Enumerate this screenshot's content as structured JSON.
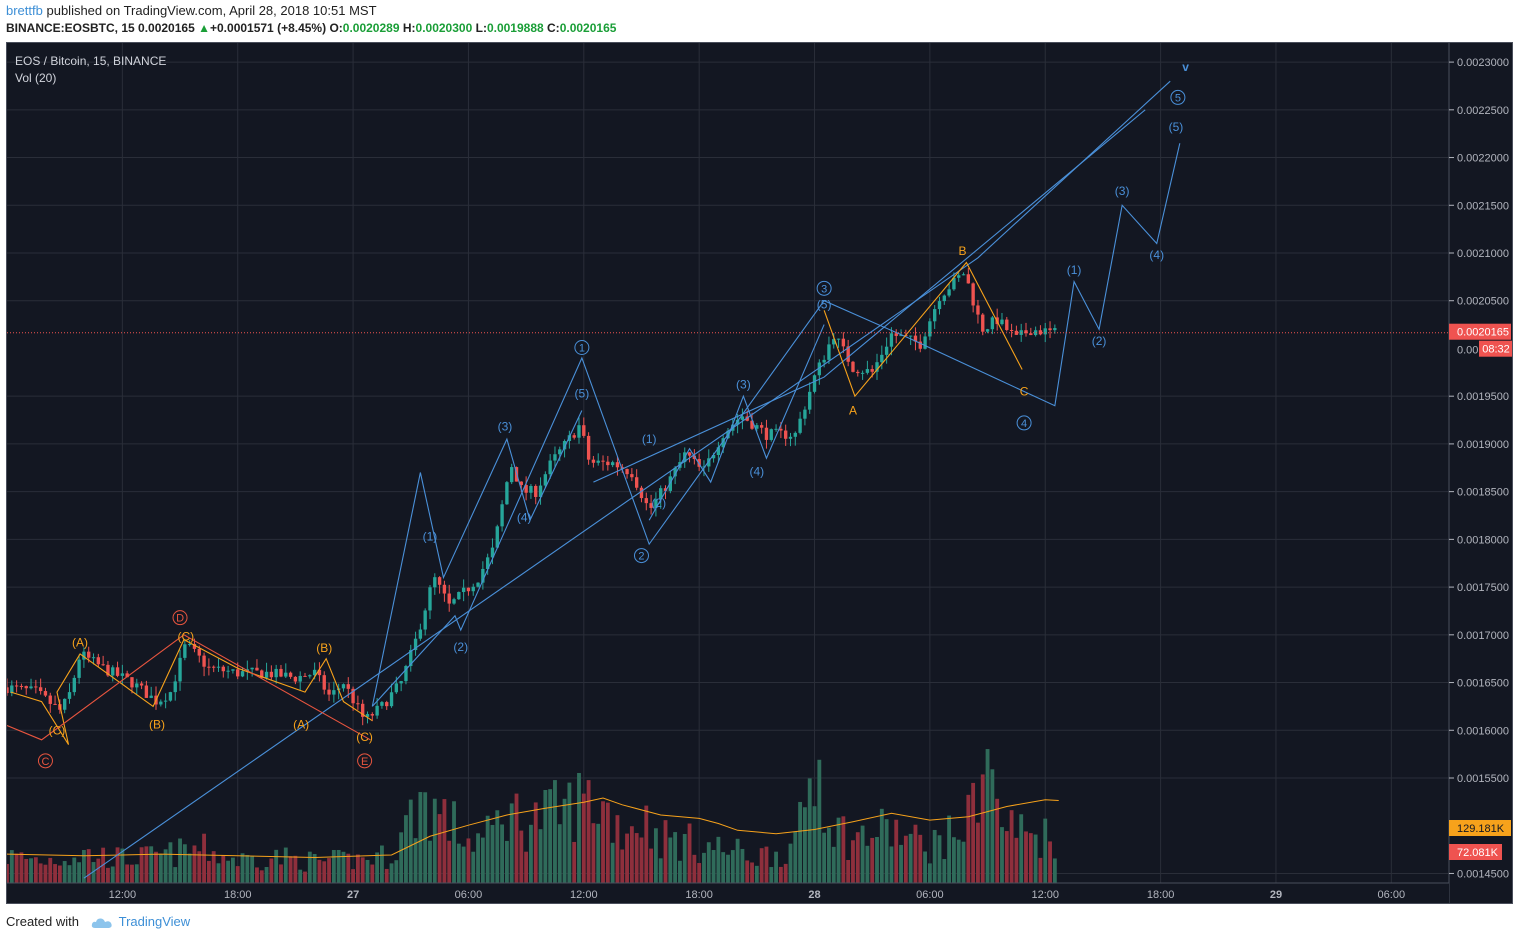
{
  "header": {
    "user": "brettfb",
    "published": "published on TradingView.com, April 28, 2018 10:51 MST",
    "symbol": "BINANCE:EOSBTC, 15",
    "price": "0.0020165",
    "arrow": "▲",
    "change": "+0.0001571 (+8.45%)",
    "open_label": "O:",
    "open": "0.0020289",
    "high_label": "H:",
    "high": "0.0020300",
    "low_label": "L:",
    "low": "0.0019888",
    "close_label": "C:",
    "close": "0.0020165"
  },
  "footer": {
    "created_with": "Created with",
    "brand": "TradingView"
  },
  "colors": {
    "background": "#131722",
    "grid": "#2a2e39",
    "up": "#26a69a",
    "down": "#ef5350",
    "wave_blue": "#4a90d9",
    "wave_orange": "#f7a21b",
    "wave_red": "#e8553f",
    "vol_up": "#2f6b5a",
    "vol_down": "#8e2f3c",
    "vol_ma": "#f7a21b",
    "axis_text": "#b2b5be"
  },
  "chart_data": {
    "type": "candlestick",
    "title": "EOS / Bitcoin, 15, BINANCE",
    "subtitle": "Vol (20)",
    "y_ticks": [
      "0.0023000",
      "0.0022500",
      "0.0022000",
      "0.0021500",
      "0.0021000",
      "0.0020500",
      "0.0019500",
      "0.0019000",
      "0.0018500",
      "0.0018000",
      "0.0017500",
      "0.0017000",
      "0.0016500",
      "0.0016000",
      "0.0015500",
      "0.0014500"
    ],
    "y_tick_values": [
      0.0023,
      0.00225,
      0.0022,
      0.00215,
      0.0021,
      0.00205,
      0.00195,
      0.0019,
      0.00185,
      0.0018,
      0.00175,
      0.0017,
      0.00165,
      0.0016,
      0.00155,
      0.00145
    ],
    "ylim": [
      0.00144,
      0.00232
    ],
    "x_ticks": [
      "12:00",
      "18:00",
      "27",
      "06:00",
      "12:00",
      "18:00",
      "28",
      "06:00",
      "12:00",
      "18:00",
      "29",
      "06:00"
    ],
    "x_tick_hours": [
      12,
      18,
      24,
      30,
      36,
      42,
      48,
      54,
      60,
      66,
      72,
      78
    ],
    "xlim_hours": [
      6,
      81
    ],
    "last_price": {
      "value": 0.0020165,
      "label": "0.0020165",
      "countdown": "08:32",
      "partial_label": "0.00"
    },
    "volume_labels": {
      "ma": "129.181K",
      "volume": "72.081K"
    },
    "price_path": [
      [
        6.0,
        0.001645
      ],
      [
        7.5,
        0.00164
      ],
      [
        8.8,
        0.00162
      ],
      [
        9.3,
        0.00164
      ],
      [
        9.8,
        0.00168
      ],
      [
        11,
        0.001665
      ],
      [
        12.5,
        0.00165
      ],
      [
        13.8,
        0.00163
      ],
      [
        14.5,
        0.00164
      ],
      [
        15.3,
        0.00169
      ],
      [
        16.5,
        0.001665
      ],
      [
        18,
        0.00166
      ],
      [
        19.5,
        0.00166
      ],
      [
        21,
        0.001655
      ],
      [
        22,
        0.00166
      ],
      [
        22.8,
        0.001635
      ],
      [
        23.5,
        0.00165
      ],
      [
        24.6,
        0.00161
      ],
      [
        25.5,
        0.001625
      ],
      [
        26.5,
        0.00165
      ],
      [
        27.2,
        0.00169
      ],
      [
        28.2,
        0.00176
      ],
      [
        29,
        0.00173
      ],
      [
        29.8,
        0.001745
      ],
      [
        30.5,
        0.00176
      ],
      [
        31.3,
        0.00179
      ],
      [
        32.2,
        0.00188
      ],
      [
        32.8,
        0.00185
      ],
      [
        33.5,
        0.00185
      ],
      [
        34.3,
        0.00188
      ],
      [
        35.8,
        0.00192
      ],
      [
        36.3,
        0.00188
      ],
      [
        37.5,
        0.00188
      ],
      [
        38.5,
        0.00187
      ],
      [
        39.4,
        0.00183
      ],
      [
        40.4,
        0.00186
      ],
      [
        41.3,
        0.00189
      ],
      [
        42.2,
        0.00187
      ],
      [
        43.2,
        0.00191
      ],
      [
        44.2,
        0.00193
      ],
      [
        45.5,
        0.00191
      ],
      [
        47,
        0.00191
      ],
      [
        48,
        0.00197
      ],
      [
        49,
        0.002015
      ],
      [
        50,
        0.00198
      ],
      [
        51,
        0.001975
      ],
      [
        52,
        0.002015
      ],
      [
        53.5,
        0.002005
      ],
      [
        54.5,
        0.002055
      ],
      [
        55.8,
        0.00208
      ],
      [
        56.7,
        0.00202
      ],
      [
        57.5,
        0.00203
      ],
      [
        58.5,
        0.00201
      ],
      [
        59.2,
        0.00202
      ],
      [
        60.5,
        0.0020165
      ]
    ],
    "volume_shape_k": [
      [
        6,
        35
      ],
      [
        8,
        30
      ],
      [
        10,
        38
      ],
      [
        12,
        32
      ],
      [
        14,
        35
      ],
      [
        16,
        45
      ],
      [
        18,
        30
      ],
      [
        20,
        34
      ],
      [
        22,
        28
      ],
      [
        24,
        30
      ],
      [
        26,
        36
      ],
      [
        27.5,
        110
      ],
      [
        29,
        80
      ],
      [
        30,
        55
      ],
      [
        31,
        60
      ],
      [
        32,
        95
      ],
      [
        33,
        80
      ],
      [
        34,
        88
      ],
      [
        35,
        95
      ],
      [
        36,
        110
      ],
      [
        37,
        100
      ],
      [
        38,
        70
      ],
      [
        39,
        85
      ],
      [
        40,
        60
      ],
      [
        41,
        55
      ],
      [
        42,
        50
      ],
      [
        43,
        45
      ],
      [
        44,
        40
      ],
      [
        45,
        35
      ],
      [
        46,
        40
      ],
      [
        47,
        45
      ],
      [
        47.6,
        120
      ],
      [
        48.2,
        160
      ],
      [
        49,
        75
      ],
      [
        50,
        55
      ],
      [
        51,
        65
      ],
      [
        52,
        70
      ],
      [
        53,
        55
      ],
      [
        54,
        50
      ],
      [
        55,
        60
      ],
      [
        56,
        80
      ],
      [
        56.9,
        190
      ],
      [
        57.5,
        90
      ],
      [
        58,
        75
      ],
      [
        59,
        65
      ],
      [
        60,
        62
      ],
      [
        60.7,
        60
      ]
    ],
    "volume_ma_k": [
      [
        6,
        34
      ],
      [
        10,
        32
      ],
      [
        14,
        34
      ],
      [
        18,
        32
      ],
      [
        22,
        30
      ],
      [
        26,
        33
      ],
      [
        28,
        55
      ],
      [
        30,
        68
      ],
      [
        32,
        80
      ],
      [
        34,
        88
      ],
      [
        36,
        95
      ],
      [
        37,
        100
      ],
      [
        38,
        92
      ],
      [
        40,
        80
      ],
      [
        42,
        76
      ],
      [
        43,
        70
      ],
      [
        44,
        62
      ],
      [
        46,
        58
      ],
      [
        48,
        63
      ],
      [
        50,
        72
      ],
      [
        52,
        82
      ],
      [
        54,
        74
      ],
      [
        56,
        78
      ],
      [
        58,
        90
      ],
      [
        60,
        98
      ],
      [
        60.7,
        97
      ]
    ],
    "lines": [
      {
        "color": "wave_blue",
        "points": [
          [
            10,
            0.001445
          ],
          [
            56.5,
            0.002095
          ],
          [
            66.5,
            0.00228
          ]
        ]
      },
      {
        "color": "wave_blue",
        "points": [
          [
            36.5,
            0.00186
          ],
          [
            48.5,
            0.00197
          ],
          [
            65.2,
            0.00225
          ]
        ]
      },
      {
        "color": "wave_blue",
        "points": [
          [
            25,
            0.001625
          ],
          [
            27.5,
            0.00187
          ],
          [
            28.7,
            0.00176
          ],
          [
            32,
            0.001905
          ],
          [
            33.2,
            0.00182
          ],
          [
            35.9,
            0.001935
          ]
        ]
      },
      {
        "color": "wave_blue",
        "points": [
          [
            25,
            0.001625
          ],
          [
            29.3,
            0.00172
          ],
          [
            29.6,
            0.001705
          ],
          [
            35.9,
            0.00199
          ],
          [
            39.4,
            0.001795
          ],
          [
            48.5,
            0.00205
          ],
          [
            53,
            0.00201
          ],
          [
            60.5,
            0.00194
          ],
          [
            61.5,
            0.00207
          ],
          [
            62.8,
            0.00202
          ],
          [
            64,
            0.00215
          ],
          [
            65.8,
            0.00211
          ],
          [
            67,
            0.002215
          ]
        ]
      },
      {
        "color": "wave_blue",
        "points": [
          [
            39.4,
            0.00182
          ],
          [
            41.5,
            0.001895
          ],
          [
            42.6,
            0.00186
          ],
          [
            44.3,
            0.00195
          ],
          [
            45.5,
            0.001885
          ],
          [
            48.5,
            0.002025
          ]
        ]
      },
      {
        "color": "wave_orange",
        "points": [
          [
            6.2,
            0.00164
          ],
          [
            7.8,
            0.00163
          ],
          [
            9.2,
            0.001585
          ],
          [
            8.6,
            0.00164
          ],
          [
            9.8,
            0.00168
          ],
          [
            13.6,
            0.001625
          ],
          [
            15.2,
            0.001695
          ],
          [
            18,
            0.001665
          ],
          [
            21.5,
            0.00164
          ],
          [
            22.6,
            0.001675
          ],
          [
            23.5,
            0.00163
          ],
          [
            25,
            0.00161
          ]
        ]
      },
      {
        "color": "wave_orange",
        "points": [
          [
            48.5,
            0.00204
          ],
          [
            50.1,
            0.00195
          ],
          [
            55.9,
            0.00209
          ],
          [
            58.8,
            0.001978
          ]
        ]
      },
      {
        "color": "wave_red",
        "points": [
          [
            6,
            0.001605
          ],
          [
            7.8,
            0.00159
          ],
          [
            15.2,
            0.0017
          ],
          [
            24.9,
            0.00159
          ]
        ]
      }
    ],
    "annotations": [
      {
        "text": "(A)",
        "x": 9.8,
        "y": 0.001692,
        "color": "wave_orange"
      },
      {
        "text": "(C)",
        "x": 8.6,
        "y": 0.0016,
        "color": "wave_orange"
      },
      {
        "text": "C",
        "x": 8.0,
        "y": 0.001568,
        "color": "wave_red",
        "circle": true
      },
      {
        "text": "(B)",
        "x": 13.8,
        "y": 0.001606,
        "color": "wave_orange"
      },
      {
        "text": "D",
        "x": 15.0,
        "y": 0.001718,
        "color": "wave_red",
        "circle": true
      },
      {
        "text": "(C)",
        "x": 15.3,
        "y": 0.001698,
        "color": "wave_orange"
      },
      {
        "text": "(B)",
        "x": 22.5,
        "y": 0.001686,
        "color": "wave_orange"
      },
      {
        "text": "(A)",
        "x": 21.3,
        "y": 0.001606,
        "color": "wave_orange"
      },
      {
        "text": "(C)",
        "x": 24.6,
        "y": 0.001593,
        "color": "wave_orange"
      },
      {
        "text": "E",
        "x": 24.6,
        "y": 0.001568,
        "color": "wave_red",
        "circle": true
      },
      {
        "text": "(1)",
        "x": 28.0,
        "y": 0.001803,
        "color": "wave_blue"
      },
      {
        "text": "(2)",
        "x": 29.6,
        "y": 0.001687,
        "color": "wave_blue"
      },
      {
        "text": "(3)",
        "x": 31.9,
        "y": 0.001918,
        "color": "wave_blue"
      },
      {
        "text": "(4)",
        "x": 32.9,
        "y": 0.001823,
        "color": "wave_blue"
      },
      {
        "text": "(5)",
        "x": 35.9,
        "y": 0.001953,
        "color": "wave_blue"
      },
      {
        "text": "1",
        "x": 35.9,
        "y": 0.002001,
        "color": "wave_blue",
        "circle": true
      },
      {
        "text": "(1)",
        "x": 39.4,
        "y": 0.001905,
        "color": "wave_blue"
      },
      {
        "text": "(2)",
        "x": 39.9,
        "y": 0.001838,
        "color": "wave_blue"
      },
      {
        "text": "2",
        "x": 39.0,
        "y": 0.001783,
        "color": "wave_blue",
        "circle": true
      },
      {
        "text": "(3)",
        "x": 44.3,
        "y": 0.001962,
        "color": "wave_blue"
      },
      {
        "text": "(4)",
        "x": 45.0,
        "y": 0.001871,
        "color": "wave_blue"
      },
      {
        "text": "3",
        "x": 48.5,
        "y": 0.002063,
        "color": "wave_blue",
        "circle": true
      },
      {
        "text": "(5)",
        "x": 48.5,
        "y": 0.002046,
        "color": "wave_blue"
      },
      {
        "text": "A",
        "x": 50.0,
        "y": 0.001935,
        "color": "wave_orange"
      },
      {
        "text": "B",
        "x": 55.7,
        "y": 0.002102,
        "color": "wave_orange"
      },
      {
        "text": "C",
        "x": 58.9,
        "y": 0.001955,
        "color": "wave_orange"
      },
      {
        "text": "4",
        "x": 58.9,
        "y": 0.001922,
        "color": "wave_blue",
        "circle": true
      },
      {
        "text": "(1)",
        "x": 61.5,
        "y": 0.002082,
        "color": "wave_blue"
      },
      {
        "text": "(2)",
        "x": 62.8,
        "y": 0.002008,
        "color": "wave_blue"
      },
      {
        "text": "(3)",
        "x": 64.0,
        "y": 0.002165,
        "color": "wave_blue"
      },
      {
        "text": "(4)",
        "x": 65.8,
        "y": 0.002098,
        "color": "wave_blue"
      },
      {
        "text": "(5)",
        "x": 66.8,
        "y": 0.002232,
        "color": "wave_blue"
      },
      {
        "text": "5",
        "x": 66.9,
        "y": 0.002263,
        "color": "wave_blue",
        "circle": true
      },
      {
        "text": "v",
        "x": 67.3,
        "y": 0.002295,
        "color": "wave_blue",
        "bold": true
      }
    ]
  }
}
